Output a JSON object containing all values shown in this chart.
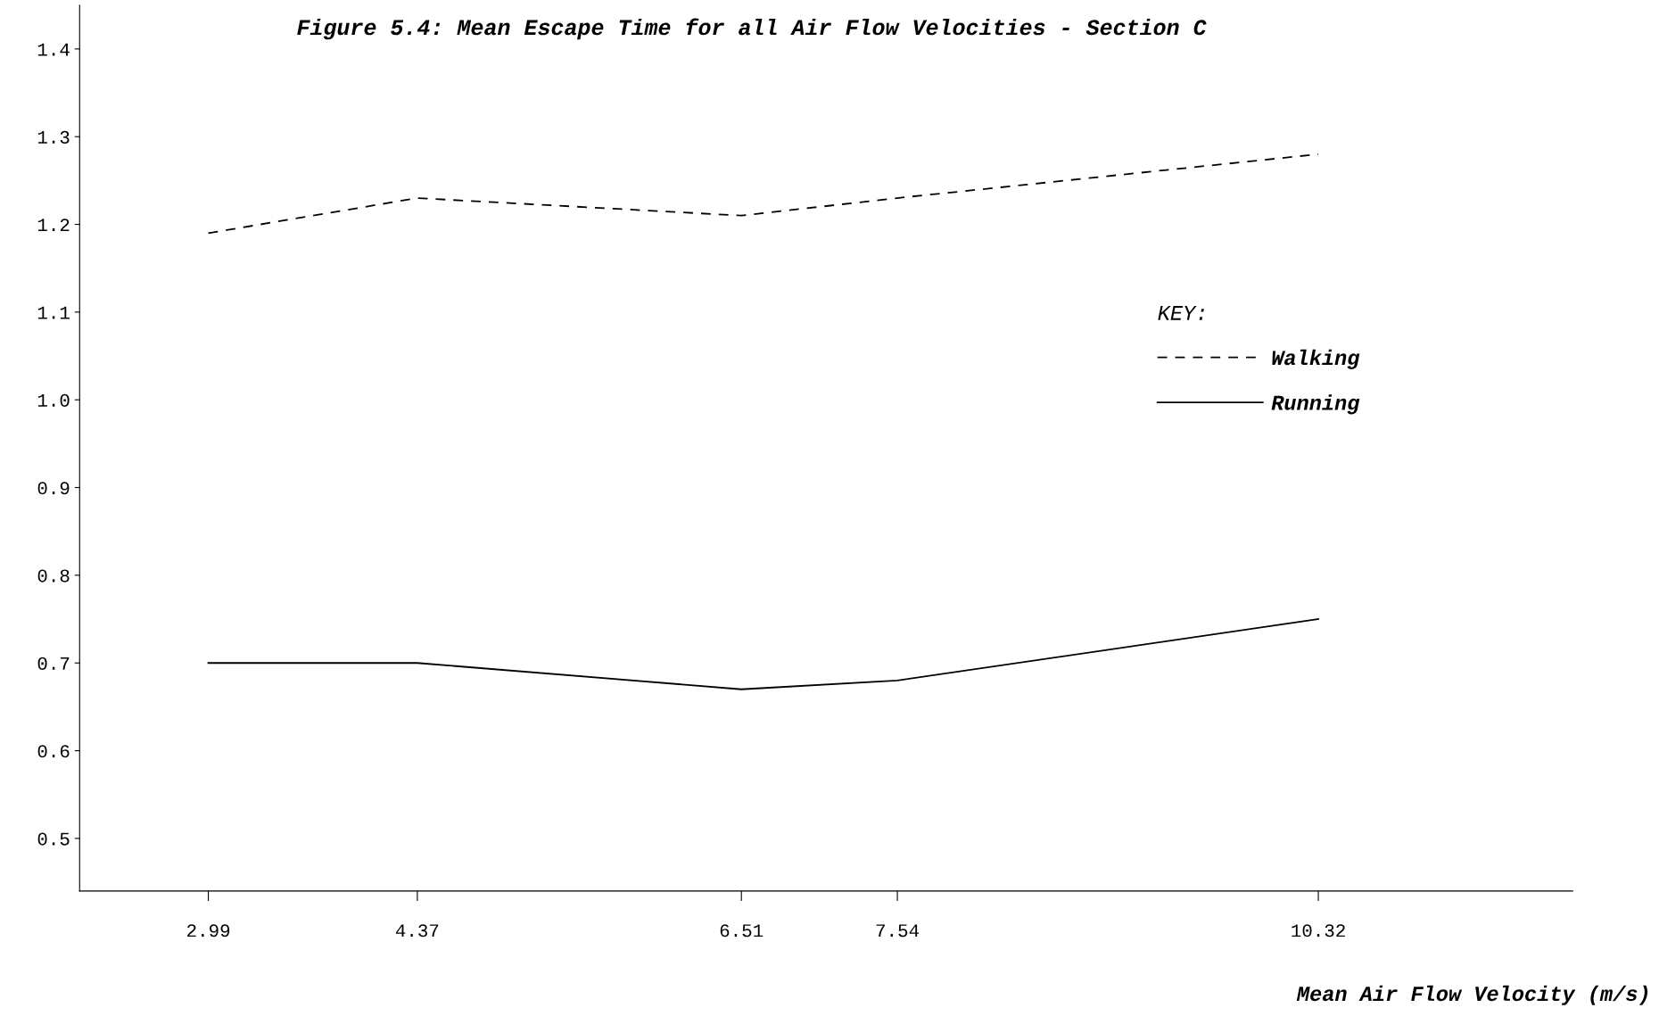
{
  "chart_data": {
    "type": "line",
    "title": "Figure 5.4: Mean Escape Time for all Air Flow Velocities - Section C",
    "xlabel": "Mean Air Flow Velocity (m/s)",
    "x": [
      2.99,
      4.37,
      6.51,
      7.54,
      10.32
    ],
    "series": [
      {
        "name": "Walking",
        "color": "#000000",
        "line_style": "dashed",
        "values": [
          1.19,
          1.23,
          1.21,
          1.23,
          1.28
        ]
      },
      {
        "name": "Running",
        "color": "#000000",
        "line_style": "solid",
        "values": [
          0.7,
          0.7,
          0.67,
          0.68,
          0.75
        ]
      }
    ],
    "xlim": [
      2.14,
      12.0
    ],
    "xticks": [
      2.99,
      4.37,
      6.51,
      7.54,
      10.32
    ],
    "ylim": [
      0.44,
      1.45
    ],
    "yticks": [
      {
        "value": 0.5,
        "label": "0.5"
      },
      {
        "value": 0.6,
        "label": "0.6"
      },
      {
        "value": 0.7,
        "label": "0.7"
      },
      {
        "value": 0.8,
        "label": "0.8"
      },
      {
        "value": 0.9,
        "label": "0.9"
      },
      {
        "value": 1.0,
        "label": "1.0"
      },
      {
        "value": 1.1,
        "label": "1.1"
      },
      {
        "value": 1.2,
        "label": "1.2"
      },
      {
        "value": 1.3,
        "label": "1.3"
      },
      {
        "value": 1.4,
        "label": "1.4"
      }
    ],
    "legend": "right",
    "legend_title": "KEY:",
    "grid": false,
    "marker": "none"
  }
}
